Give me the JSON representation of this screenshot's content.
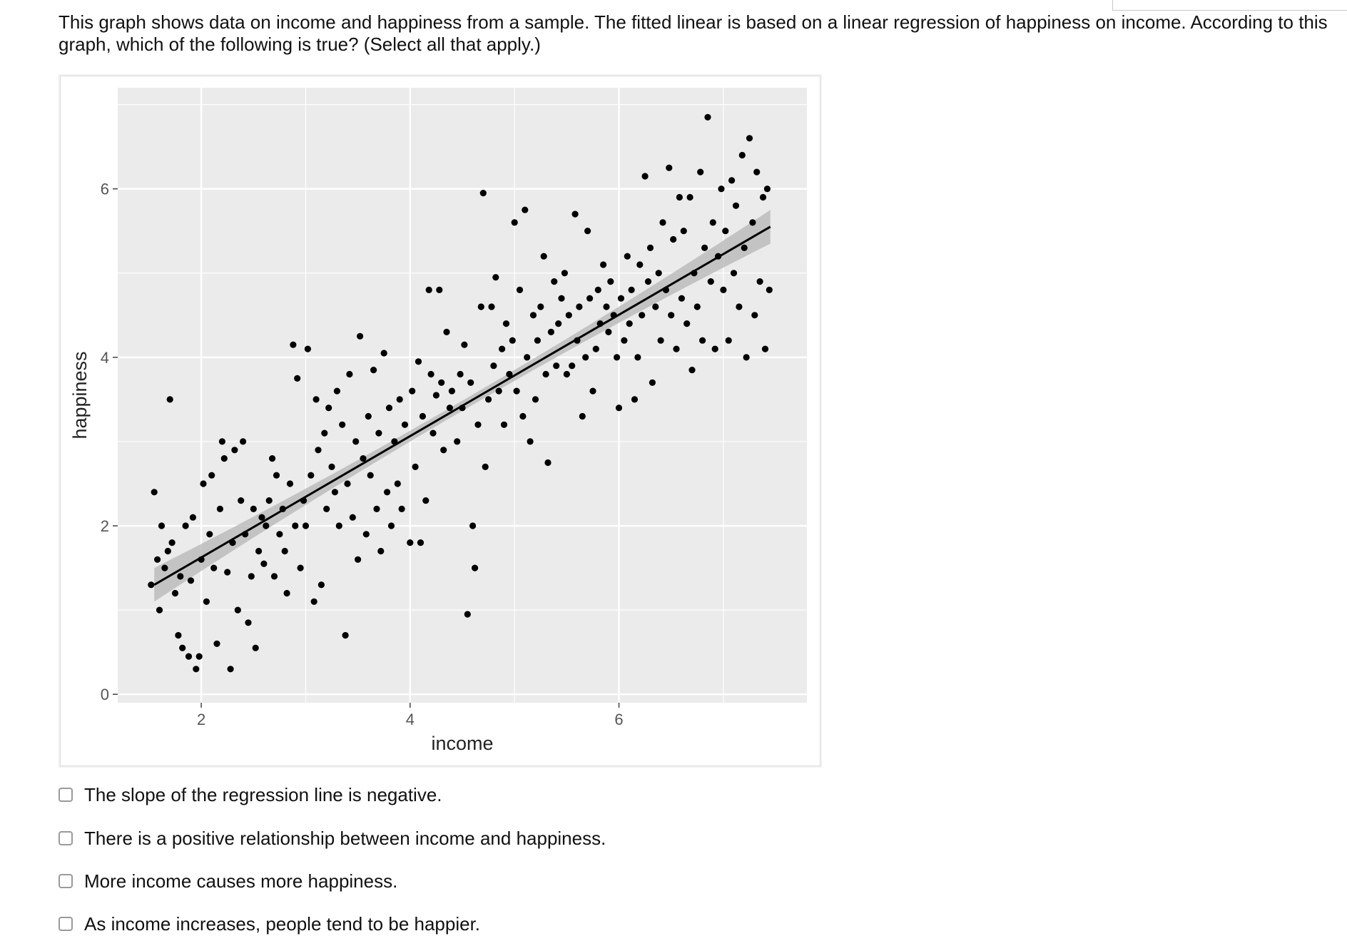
{
  "question": {
    "text": "This graph shows data on income and happiness from a sample. The fitted linear is based on a linear regression of happiness on income. According to this graph, which of the following is true? (Select all that apply.)"
  },
  "options": [
    {
      "label": "The slope of the regression line is negative.",
      "checked": false
    },
    {
      "label": "There is a positive relationship between income and happiness.",
      "checked": false
    },
    {
      "label": "More income causes more happiness.",
      "checked": false
    },
    {
      "label": "As income increases, people tend to be happier.",
      "checked": false
    }
  ],
  "chart_data": {
    "type": "scatter",
    "title": "",
    "xlabel": "income",
    "ylabel": "happiness",
    "xlim": [
      1.2,
      7.8
    ],
    "ylim": [
      -0.1,
      7.2
    ],
    "xticks": [
      "2",
      "4",
      "6"
    ],
    "yticks": [
      "0",
      "2",
      "4",
      "6"
    ],
    "grid": true,
    "regression_line": {
      "x": [
        1.55,
        7.45
      ],
      "y": [
        1.3,
        5.55
      ],
      "confidence_band": true
    },
    "colors": {
      "panel": "#ebebeb",
      "grid": "#ffffff",
      "points": "#000000",
      "line": "#000000",
      "band": "#b5b5b5"
    },
    "points": [
      [
        1.52,
        1.3
      ],
      [
        1.55,
        2.4
      ],
      [
        1.58,
        1.6
      ],
      [
        1.6,
        1.0
      ],
      [
        1.62,
        2.0
      ],
      [
        1.65,
        1.5
      ],
      [
        1.68,
        1.7
      ],
      [
        1.7,
        3.5
      ],
      [
        1.72,
        1.8
      ],
      [
        1.75,
        1.2
      ],
      [
        1.78,
        0.7
      ],
      [
        1.8,
        1.4
      ],
      [
        1.82,
        0.55
      ],
      [
        1.85,
        2.0
      ],
      [
        1.88,
        0.45
      ],
      [
        1.9,
        1.35
      ],
      [
        1.92,
        2.1
      ],
      [
        1.95,
        0.3
      ],
      [
        1.98,
        0.45
      ],
      [
        2.0,
        1.6
      ],
      [
        2.02,
        2.5
      ],
      [
        2.05,
        1.1
      ],
      [
        2.08,
        1.9
      ],
      [
        2.1,
        2.6
      ],
      [
        2.12,
        1.5
      ],
      [
        2.15,
        0.6
      ],
      [
        2.18,
        2.2
      ],
      [
        2.2,
        3.0
      ],
      [
        2.22,
        2.8
      ],
      [
        2.25,
        1.45
      ],
      [
        2.28,
        0.3
      ],
      [
        2.3,
        1.8
      ],
      [
        2.32,
        2.9
      ],
      [
        2.35,
        1.0
      ],
      [
        2.38,
        2.3
      ],
      [
        2.4,
        3.0
      ],
      [
        2.42,
        1.9
      ],
      [
        2.45,
        0.85
      ],
      [
        2.48,
        1.4
      ],
      [
        2.5,
        2.2
      ],
      [
        2.52,
        0.55
      ],
      [
        2.55,
        1.7
      ],
      [
        2.58,
        2.1
      ],
      [
        2.6,
        1.55
      ],
      [
        2.62,
        2.0
      ],
      [
        2.65,
        2.3
      ],
      [
        2.68,
        2.8
      ],
      [
        2.7,
        1.4
      ],
      [
        2.72,
        2.6
      ],
      [
        2.75,
        1.9
      ],
      [
        2.78,
        2.2
      ],
      [
        2.8,
        1.7
      ],
      [
        2.82,
        1.2
      ],
      [
        2.85,
        2.5
      ],
      [
        2.88,
        4.15
      ],
      [
        2.9,
        2.0
      ],
      [
        2.92,
        3.75
      ],
      [
        2.95,
        1.5
      ],
      [
        2.98,
        2.3
      ],
      [
        3.0,
        2.0
      ],
      [
        3.02,
        4.1
      ],
      [
        3.05,
        2.6
      ],
      [
        3.08,
        1.1
      ],
      [
        3.1,
        3.5
      ],
      [
        3.12,
        2.9
      ],
      [
        3.15,
        1.3
      ],
      [
        3.18,
        3.1
      ],
      [
        3.2,
        2.2
      ],
      [
        3.22,
        3.4
      ],
      [
        3.25,
        2.7
      ],
      [
        3.28,
        2.4
      ],
      [
        3.3,
        3.6
      ],
      [
        3.32,
        2.0
      ],
      [
        3.35,
        3.2
      ],
      [
        3.38,
        0.7
      ],
      [
        3.4,
        2.5
      ],
      [
        3.42,
        3.8
      ],
      [
        3.45,
        2.1
      ],
      [
        3.48,
        3.0
      ],
      [
        3.5,
        1.6
      ],
      [
        3.52,
        4.25
      ],
      [
        3.55,
        2.8
      ],
      [
        3.58,
        1.9
      ],
      [
        3.6,
        3.3
      ],
      [
        3.62,
        2.6
      ],
      [
        3.65,
        3.85
      ],
      [
        3.68,
        2.2
      ],
      [
        3.7,
        3.1
      ],
      [
        3.72,
        1.7
      ],
      [
        3.75,
        4.05
      ],
      [
        3.78,
        2.4
      ],
      [
        3.8,
        3.4
      ],
      [
        3.82,
        2.0
      ],
      [
        3.85,
        3.0
      ],
      [
        3.88,
        2.5
      ],
      [
        3.9,
        3.5
      ],
      [
        3.92,
        2.2
      ],
      [
        3.95,
        3.2
      ],
      [
        4.0,
        1.8
      ],
      [
        4.02,
        3.6
      ],
      [
        4.05,
        2.7
      ],
      [
        4.08,
        3.95
      ],
      [
        4.1,
        1.8
      ],
      [
        4.12,
        3.3
      ],
      [
        4.15,
        2.3
      ],
      [
        4.18,
        4.8
      ],
      [
        4.2,
        3.8
      ],
      [
        4.22,
        3.1
      ],
      [
        4.25,
        3.55
      ],
      [
        4.28,
        4.8
      ],
      [
        4.3,
        3.7
      ],
      [
        4.32,
        2.9
      ],
      [
        4.35,
        4.3
      ],
      [
        4.38,
        3.4
      ],
      [
        4.4,
        3.6
      ],
      [
        4.45,
        3.0
      ],
      [
        4.48,
        3.8
      ],
      [
        4.5,
        3.4
      ],
      [
        4.52,
        4.15
      ],
      [
        4.55,
        0.95
      ],
      [
        4.58,
        3.7
      ],
      [
        4.6,
        2.0
      ],
      [
        4.62,
        1.5
      ],
      [
        4.65,
        3.2
      ],
      [
        4.68,
        4.6
      ],
      [
        4.7,
        5.95
      ],
      [
        4.72,
        2.7
      ],
      [
        4.75,
        3.5
      ],
      [
        4.78,
        4.6
      ],
      [
        4.8,
        3.9
      ],
      [
        4.82,
        4.95
      ],
      [
        4.85,
        3.6
      ],
      [
        4.88,
        4.1
      ],
      [
        4.9,
        3.2
      ],
      [
        4.92,
        4.4
      ],
      [
        4.95,
        3.8
      ],
      [
        4.98,
        4.2
      ],
      [
        5.0,
        5.6
      ],
      [
        5.02,
        3.6
      ],
      [
        5.05,
        4.8
      ],
      [
        5.08,
        3.3
      ],
      [
        5.1,
        5.75
      ],
      [
        5.12,
        4.0
      ],
      [
        5.15,
        3.0
      ],
      [
        5.18,
        4.5
      ],
      [
        5.2,
        3.5
      ],
      [
        5.22,
        4.2
      ],
      [
        5.25,
        4.6
      ],
      [
        5.28,
        5.2
      ],
      [
        5.3,
        3.8
      ],
      [
        5.32,
        2.75
      ],
      [
        5.35,
        4.3
      ],
      [
        5.38,
        4.9
      ],
      [
        5.4,
        3.9
      ],
      [
        5.42,
        4.4
      ],
      [
        5.45,
        4.7
      ],
      [
        5.48,
        5.0
      ],
      [
        5.5,
        3.8
      ],
      [
        5.52,
        4.5
      ],
      [
        5.55,
        3.9
      ],
      [
        5.58,
        5.7
      ],
      [
        5.6,
        4.2
      ],
      [
        5.62,
        4.6
      ],
      [
        5.65,
        3.3
      ],
      [
        5.68,
        4.0
      ],
      [
        5.7,
        5.5
      ],
      [
        5.72,
        4.7
      ],
      [
        5.75,
        3.6
      ],
      [
        5.78,
        4.1
      ],
      [
        5.8,
        4.8
      ],
      [
        5.82,
        4.4
      ],
      [
        5.85,
        5.1
      ],
      [
        5.88,
        4.6
      ],
      [
        5.9,
        4.3
      ],
      [
        5.92,
        4.9
      ],
      [
        5.95,
        4.5
      ],
      [
        5.98,
        4.0
      ],
      [
        6.0,
        3.4
      ],
      [
        6.02,
        4.7
      ],
      [
        6.05,
        4.2
      ],
      [
        6.08,
        5.2
      ],
      [
        6.1,
        4.4
      ],
      [
        6.12,
        4.8
      ],
      [
        6.15,
        3.5
      ],
      [
        6.18,
        4.0
      ],
      [
        6.2,
        5.1
      ],
      [
        6.22,
        4.5
      ],
      [
        6.25,
        6.15
      ],
      [
        6.28,
        4.9
      ],
      [
        6.3,
        5.3
      ],
      [
        6.32,
        3.7
      ],
      [
        6.35,
        4.6
      ],
      [
        6.38,
        5.0
      ],
      [
        6.4,
        4.2
      ],
      [
        6.42,
        5.6
      ],
      [
        6.45,
        4.8
      ],
      [
        6.48,
        6.25
      ],
      [
        6.5,
        4.5
      ],
      [
        6.52,
        5.4
      ],
      [
        6.55,
        4.1
      ],
      [
        6.58,
        5.9
      ],
      [
        6.6,
        4.7
      ],
      [
        6.62,
        5.5
      ],
      [
        6.65,
        4.4
      ],
      [
        6.68,
        5.9
      ],
      [
        6.7,
        3.85
      ],
      [
        6.72,
        5.0
      ],
      [
        6.75,
        4.6
      ],
      [
        6.78,
        6.2
      ],
      [
        6.8,
        4.2
      ],
      [
        6.82,
        5.3
      ],
      [
        6.85,
        6.85
      ],
      [
        6.88,
        4.9
      ],
      [
        6.9,
        5.6
      ],
      [
        6.92,
        4.1
      ],
      [
        6.95,
        5.2
      ],
      [
        6.98,
        6.0
      ],
      [
        7.0,
        4.8
      ],
      [
        7.02,
        5.5
      ],
      [
        7.05,
        4.2
      ],
      [
        7.08,
        6.1
      ],
      [
        7.1,
        5.0
      ],
      [
        7.12,
        5.8
      ],
      [
        7.15,
        4.6
      ],
      [
        7.18,
        6.4
      ],
      [
        7.2,
        5.3
      ],
      [
        7.22,
        4.0
      ],
      [
        7.25,
        6.6
      ],
      [
        7.28,
        5.6
      ],
      [
        7.3,
        4.5
      ],
      [
        7.32,
        6.2
      ],
      [
        7.35,
        4.9
      ],
      [
        7.38,
        5.9
      ],
      [
        7.4,
        4.1
      ],
      [
        7.42,
        6.0
      ],
      [
        7.44,
        4.8
      ]
    ]
  }
}
